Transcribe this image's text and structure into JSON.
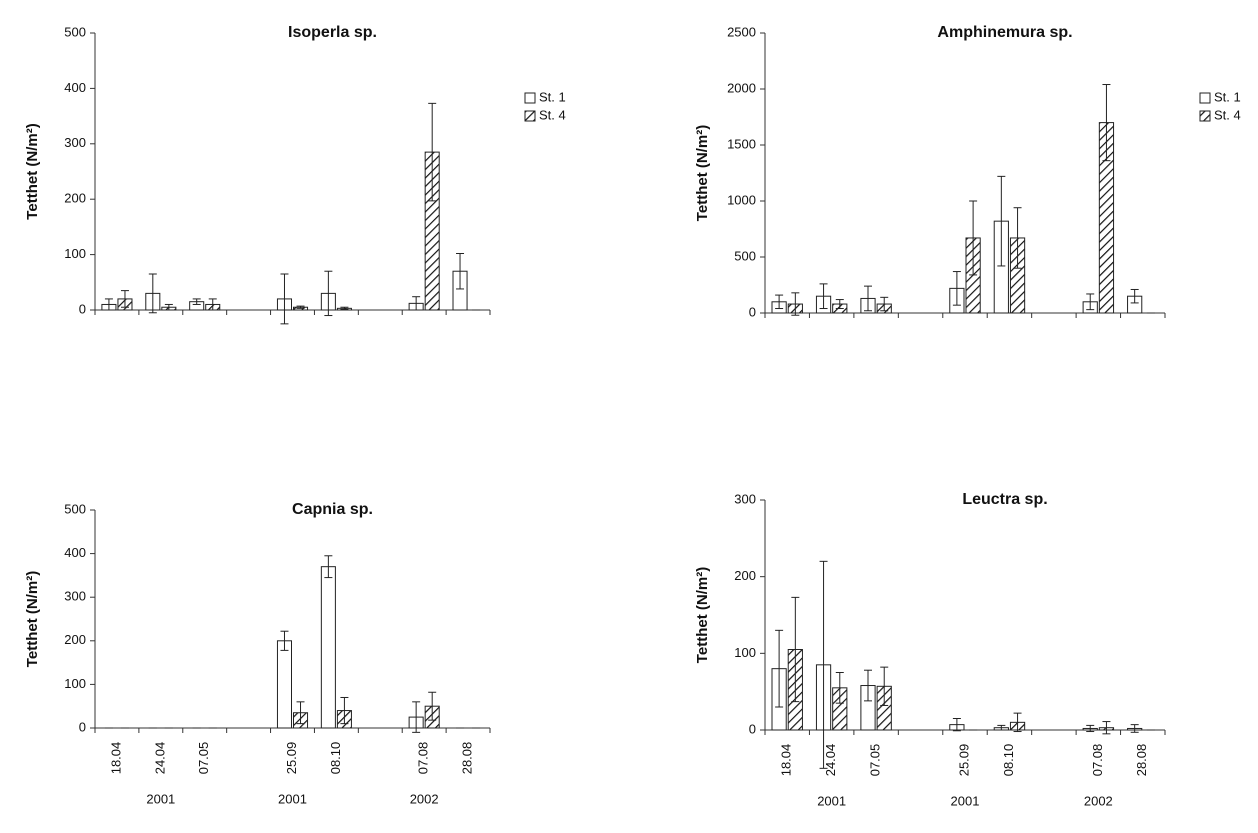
{
  "chart_data": [
    {
      "type": "bar",
      "title": "Isoperla sp.",
      "ylabel": "Tetthet (N/m²)",
      "categories": [
        null,
        null,
        null,
        null,
        null,
        null,
        null,
        null,
        null
      ],
      "series": [
        {
          "name": "St. 1",
          "color": "#ffffff",
          "values": [
            10,
            30,
            15,
            null,
            20,
            30,
            null,
            12,
            70
          ],
          "errors": [
            10,
            35,
            5,
            null,
            45,
            40,
            null,
            12,
            32
          ]
        },
        {
          "name": "St. 4",
          "color": "hatch",
          "values": [
            20,
            5,
            10,
            null,
            5,
            3,
            null,
            285,
            0
          ],
          "errors": [
            15,
            5,
            10,
            null,
            2,
            2,
            null,
            88,
            0
          ]
        }
      ],
      "ylim": [
        0,
        500
      ],
      "yticks": [
        0,
        100,
        200,
        300,
        400,
        500
      ],
      "legend": "right"
    },
    {
      "type": "bar",
      "title": "Amphinemura sp.",
      "ylabel": "Tetthet (N/m²)",
      "categories": [
        null,
        null,
        null,
        null,
        null,
        null,
        null,
        null,
        null
      ],
      "series": [
        {
          "name": "St. 1",
          "color": "#ffffff",
          "values": [
            100,
            150,
            130,
            null,
            220,
            820,
            null,
            100,
            150
          ],
          "errors": [
            60,
            110,
            110,
            null,
            150,
            400,
            null,
            70,
            60
          ]
        },
        {
          "name": "St. 4",
          "color": "hatch",
          "values": [
            80,
            80,
            80,
            null,
            670,
            670,
            null,
            1700,
            0
          ],
          "errors": [
            100,
            40,
            60,
            null,
            330,
            270,
            null,
            340,
            0
          ]
        }
      ],
      "ylim": [
        0,
        2500
      ],
      "yticks": [
        0,
        500,
        1000,
        1500,
        2000,
        2500
      ],
      "legend": "right"
    },
    {
      "type": "bar",
      "title": "Capnia sp.",
      "ylabel": "Tetthet (N/m²)",
      "categories": [
        "18.04",
        "24.04",
        "07.05",
        null,
        "25.09",
        "08.10",
        null,
        "07.08",
        "28.08"
      ],
      "x_groups": [
        "2001",
        "2001",
        "2002"
      ],
      "series": [
        {
          "name": "St. 1",
          "color": "#ffffff",
          "values": [
            0,
            0,
            0,
            null,
            200,
            370,
            null,
            25,
            0
          ],
          "errors": [
            0,
            0,
            0,
            null,
            22,
            25,
            null,
            35,
            0
          ]
        },
        {
          "name": "St. 4",
          "color": "hatch",
          "values": [
            0,
            0,
            0,
            null,
            35,
            40,
            null,
            50,
            0
          ],
          "errors": [
            0,
            0,
            0,
            null,
            25,
            30,
            null,
            32,
            0
          ]
        }
      ],
      "ylim": [
        0,
        500
      ],
      "yticks": [
        0,
        100,
        200,
        300,
        400,
        500
      ]
    },
    {
      "type": "bar",
      "title": "Leuctra sp.",
      "ylabel": "Tetthet (N/m²)",
      "categories": [
        "18.04",
        "24.04",
        "07.05",
        null,
        "25.09",
        "08.10",
        null,
        "07.08",
        "28.08"
      ],
      "x_groups": [
        "2001",
        "2001",
        "2002"
      ],
      "series": [
        {
          "name": "St. 1",
          "color": "#ffffff",
          "values": [
            80,
            85,
            58,
            null,
            7,
            3,
            null,
            2,
            2
          ],
          "errors": [
            50,
            135,
            20,
            null,
            8,
            3,
            null,
            4,
            5
          ]
        },
        {
          "name": "St. 4",
          "color": "hatch",
          "values": [
            105,
            55,
            57,
            null,
            0,
            10,
            null,
            3,
            0
          ],
          "errors": [
            68,
            20,
            25,
            null,
            0,
            12,
            null,
            8,
            0
          ]
        }
      ],
      "ylim": [
        0,
        300
      ],
      "yticks": [
        0,
        100,
        200,
        300
      ]
    }
  ]
}
